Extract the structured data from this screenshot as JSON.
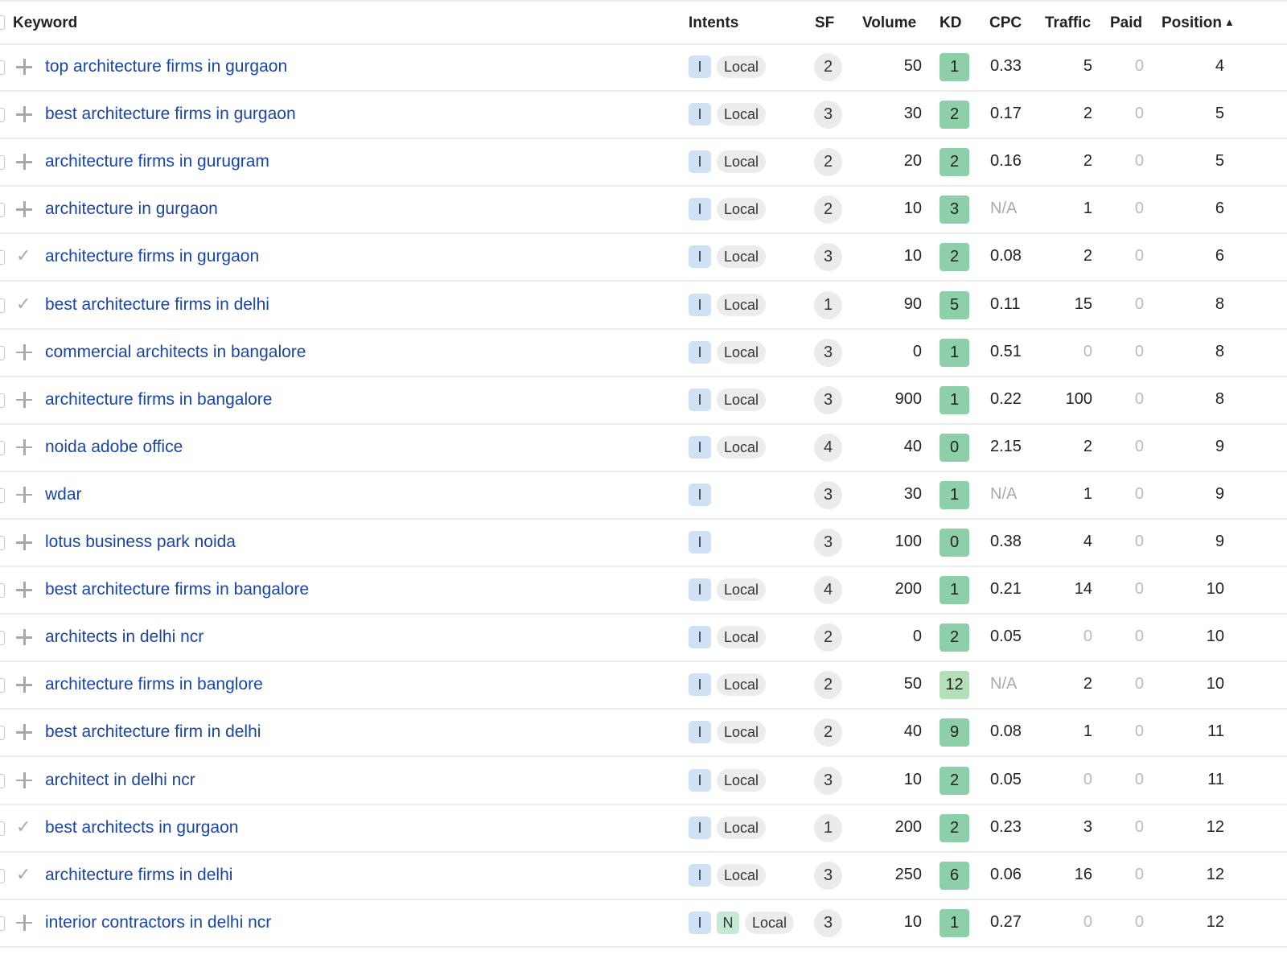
{
  "colors": {
    "link": "#1a45a8",
    "intent_informational": "#cfe1f5",
    "intent_navigational": "#c4ead6",
    "kd_easy": "#8ccfa9",
    "kd_light": "#b4dfb8"
  },
  "header": {
    "keyword": "Keyword",
    "intents": "Intents",
    "sf": "SF",
    "volume": "Volume",
    "kd": "KD",
    "cpc": "CPC",
    "traffic": "Traffic",
    "paid": "Paid",
    "position": "Position",
    "sort_icon": "sort-ascending-icon"
  },
  "rows": [
    {
      "action": "plus",
      "keyword": "top architecture firms in gurgaon",
      "intents": [
        "I"
      ],
      "local": "Local",
      "sf": "2",
      "volume": "50",
      "kd": "1",
      "cpc": "0.33",
      "traffic": "5",
      "paid": "0",
      "position": "4"
    },
    {
      "action": "plus",
      "keyword": "best architecture firms in gurgaon",
      "intents": [
        "I"
      ],
      "local": "Local",
      "sf": "3",
      "volume": "30",
      "kd": "2",
      "cpc": "0.17",
      "traffic": "2",
      "paid": "0",
      "position": "5"
    },
    {
      "action": "plus",
      "keyword": "architecture firms in gurugram",
      "intents": [
        "I"
      ],
      "local": "Local",
      "sf": "2",
      "volume": "20",
      "kd": "2",
      "cpc": "0.16",
      "traffic": "2",
      "paid": "0",
      "position": "5"
    },
    {
      "action": "plus",
      "keyword": "architecture in gurgaon",
      "intents": [
        "I"
      ],
      "local": "Local",
      "sf": "2",
      "volume": "10",
      "kd": "3",
      "cpc": "N/A",
      "traffic": "1",
      "paid": "0",
      "position": "6"
    },
    {
      "action": "check",
      "keyword": "architecture firms in gurgaon",
      "intents": [
        "I"
      ],
      "local": "Local",
      "sf": "3",
      "volume": "10",
      "kd": "2",
      "cpc": "0.08",
      "traffic": "2",
      "paid": "0",
      "position": "6"
    },
    {
      "action": "check",
      "keyword": "best architecture firms in delhi",
      "intents": [
        "I"
      ],
      "local": "Local",
      "sf": "1",
      "volume": "90",
      "kd": "5",
      "cpc": "0.11",
      "traffic": "15",
      "paid": "0",
      "position": "8"
    },
    {
      "action": "plus",
      "keyword": "commercial architects in bangalore",
      "intents": [
        "I"
      ],
      "local": "Local",
      "sf": "3",
      "volume": "0",
      "kd": "1",
      "cpc": "0.51",
      "traffic": "0",
      "paid": "0",
      "position": "8"
    },
    {
      "action": "plus",
      "keyword": "architecture firms in bangalore",
      "intents": [
        "I"
      ],
      "local": "Local",
      "sf": "3",
      "volume": "900",
      "kd": "1",
      "cpc": "0.22",
      "traffic": "100",
      "paid": "0",
      "position": "8"
    },
    {
      "action": "plus",
      "keyword": "noida adobe office",
      "intents": [
        "I"
      ],
      "local": "Local",
      "sf": "4",
      "volume": "40",
      "kd": "0",
      "cpc": "2.15",
      "traffic": "2",
      "paid": "0",
      "position": "9"
    },
    {
      "action": "plus",
      "keyword": "wdar",
      "intents": [
        "I"
      ],
      "local": "",
      "sf": "3",
      "volume": "30",
      "kd": "1",
      "cpc": "N/A",
      "traffic": "1",
      "paid": "0",
      "position": "9"
    },
    {
      "action": "plus",
      "keyword": "lotus business park noida",
      "intents": [
        "I"
      ],
      "local": "",
      "sf": "3",
      "volume": "100",
      "kd": "0",
      "cpc": "0.38",
      "traffic": "4",
      "paid": "0",
      "position": "9"
    },
    {
      "action": "plus",
      "keyword": "best architecture firms in bangalore",
      "intents": [
        "I"
      ],
      "local": "Local",
      "sf": "4",
      "volume": "200",
      "kd": "1",
      "cpc": "0.21",
      "traffic": "14",
      "paid": "0",
      "position": "10"
    },
    {
      "action": "plus",
      "keyword": "architects in delhi ncr",
      "intents": [
        "I"
      ],
      "local": "Local",
      "sf": "2",
      "volume": "0",
      "kd": "2",
      "cpc": "0.05",
      "traffic": "0",
      "paid": "0",
      "position": "10"
    },
    {
      "action": "plus",
      "keyword": "architecture firms in banglore",
      "intents": [
        "I"
      ],
      "local": "Local",
      "sf": "2",
      "volume": "50",
      "kd": "12",
      "cpc": "N/A",
      "traffic": "2",
      "paid": "0",
      "position": "10"
    },
    {
      "action": "plus",
      "keyword": "best architecture firm in delhi",
      "intents": [
        "I"
      ],
      "local": "Local",
      "sf": "2",
      "volume": "40",
      "kd": "9",
      "cpc": "0.08",
      "traffic": "1",
      "paid": "0",
      "position": "11"
    },
    {
      "action": "plus",
      "keyword": "architect in delhi ncr",
      "intents": [
        "I"
      ],
      "local": "Local",
      "sf": "3",
      "volume": "10",
      "kd": "2",
      "cpc": "0.05",
      "traffic": "0",
      "paid": "0",
      "position": "11"
    },
    {
      "action": "check",
      "keyword": "best architects in gurgaon",
      "intents": [
        "I"
      ],
      "local": "Local",
      "sf": "1",
      "volume": "200",
      "kd": "2",
      "cpc": "0.23",
      "traffic": "3",
      "paid": "0",
      "position": "12"
    },
    {
      "action": "check",
      "keyword": "architecture firms in delhi",
      "intents": [
        "I"
      ],
      "local": "Local",
      "sf": "3",
      "volume": "250",
      "kd": "6",
      "cpc": "0.06",
      "traffic": "16",
      "paid": "0",
      "position": "12"
    },
    {
      "action": "plus",
      "keyword": "interior contractors in delhi ncr",
      "intents": [
        "I",
        "N"
      ],
      "local": "Local",
      "sf": "3",
      "volume": "10",
      "kd": "1",
      "cpc": "0.27",
      "traffic": "0",
      "paid": "0",
      "position": "12"
    }
  ]
}
